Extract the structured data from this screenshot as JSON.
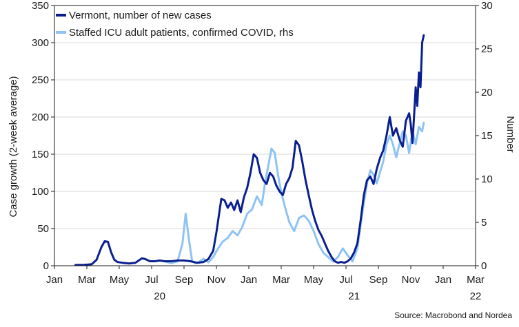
{
  "chart_data": {
    "type": "line",
    "title": "",
    "ylabel_left": "Case growth (2-week average)",
    "ylabel_right": "Number",
    "ylim_left": [
      0,
      350
    ],
    "ylim_right": [
      0,
      30
    ],
    "yticks_left": [
      "0",
      "50",
      "100",
      "150",
      "200",
      "250",
      "300",
      "350"
    ],
    "yticks_right": [
      "0",
      "5",
      "10",
      "15",
      "20",
      "25",
      "30"
    ],
    "xlim": [
      0,
      26
    ],
    "xticks": [
      {
        "x": 0,
        "label": "Jan"
      },
      {
        "x": 2,
        "label": "Mar"
      },
      {
        "x": 4,
        "label": "May"
      },
      {
        "x": 6,
        "label": "Jul"
      },
      {
        "x": 8,
        "label": "Sep"
      },
      {
        "x": 10,
        "label": "Nov"
      },
      {
        "x": 12,
        "label": "Jan"
      },
      {
        "x": 14,
        "label": "Mar"
      },
      {
        "x": 16,
        "label": "May"
      },
      {
        "x": 18,
        "label": "Jul"
      },
      {
        "x": 20,
        "label": "Sep"
      },
      {
        "x": 22,
        "label": "Nov"
      },
      {
        "x": 24,
        "label": "Jan"
      },
      {
        "x": 26,
        "label": "Mar"
      }
    ],
    "year_labels": [
      {
        "x": 6.5,
        "label": "20"
      },
      {
        "x": 18.5,
        "label": "21"
      },
      {
        "x": 26,
        "label": "22"
      }
    ],
    "grid": true,
    "legend_position": "top-left",
    "series": [
      {
        "name": "Vermont, number of new cases",
        "axis": "left",
        "color": "#0a1f8f",
        "x": [
          1.3,
          1.8,
          2.3,
          2.6,
          2.9,
          3.1,
          3.3,
          3.5,
          3.7,
          3.9,
          4.2,
          4.6,
          5.0,
          5.4,
          5.6,
          5.9,
          6.2,
          6.5,
          6.8,
          7.2,
          7.6,
          8.0,
          8.4,
          8.8,
          9.2,
          9.5,
          9.8,
          10.0,
          10.3,
          10.5,
          10.7,
          10.9,
          11.1,
          11.3,
          11.5,
          11.7,
          11.9,
          12.1,
          12.3,
          12.5,
          12.7,
          12.9,
          13.1,
          13.3,
          13.5,
          13.7,
          13.9,
          14.1,
          14.3,
          14.5,
          14.7,
          14.9,
          15.1,
          15.3,
          15.5,
          15.7,
          15.9,
          16.1,
          16.3,
          16.5,
          16.7,
          16.9,
          17.1,
          17.3,
          17.5,
          17.7,
          17.9,
          18.1,
          18.3,
          18.5,
          18.7,
          18.9,
          19.1,
          19.3,
          19.5,
          19.7,
          19.9,
          20.1,
          20.3,
          20.5,
          20.7,
          20.9,
          21.1,
          21.3,
          21.5,
          21.7,
          21.9,
          22.0,
          22.1,
          22.2,
          22.3,
          22.4,
          22.5,
          22.6,
          22.7,
          22.8
        ],
        "values": [
          1,
          1,
          2,
          8,
          25,
          33,
          32,
          18,
          8,
          5,
          4,
          3,
          4,
          10,
          9,
          6,
          6,
          7,
          6,
          6,
          7,
          7,
          6,
          4,
          5,
          9,
          20,
          45,
          90,
          88,
          78,
          85,
          75,
          88,
          72,
          92,
          105,
          125,
          150,
          145,
          125,
          115,
          110,
          125,
          120,
          108,
          100,
          95,
          110,
          118,
          132,
          168,
          162,
          140,
          115,
          95,
          75,
          60,
          48,
          40,
          30,
          20,
          12,
          6,
          4,
          5,
          4,
          6,
          10,
          18,
          30,
          60,
          95,
          115,
          120,
          110,
          130,
          145,
          155,
          175,
          200,
          175,
          185,
          170,
          160,
          195,
          205,
          190,
          165,
          200,
          240,
          215,
          260,
          240,
          300,
          310
        ]
      },
      {
        "name": "Staffed ICU adult patients, confirmed COVID, rhs",
        "axis": "right",
        "color": "#8ec3f3",
        "x": [
          6.8,
          7.2,
          7.6,
          7.9,
          8.1,
          8.3,
          8.5,
          8.7,
          8.9,
          9.2,
          9.5,
          9.8,
          10.1,
          10.4,
          10.7,
          11.0,
          11.3,
          11.6,
          11.9,
          12.2,
          12.5,
          12.8,
          13.0,
          13.2,
          13.4,
          13.6,
          13.8,
          14.0,
          14.2,
          14.5,
          14.8,
          15.1,
          15.4,
          15.7,
          16.0,
          16.3,
          16.6,
          16.9,
          17.2,
          17.5,
          17.8,
          18.1,
          18.4,
          18.7,
          19.0,
          19.3,
          19.5,
          19.7,
          19.9,
          20.1,
          20.3,
          20.5,
          20.7,
          20.9,
          21.1,
          21.3,
          21.5,
          21.7,
          21.9,
          22.1,
          22.3,
          22.5,
          22.7,
          22.8
        ],
        "values": [
          0.5,
          0.3,
          0.5,
          2.5,
          6,
          3,
          0.5,
          0.3,
          0.4,
          0.8,
          0.4,
          1.0,
          2.0,
          2.8,
          3.2,
          4.0,
          3.5,
          4.5,
          6.0,
          6.5,
          8.0,
          7.0,
          9.5,
          11.5,
          13.5,
          13.0,
          10.5,
          8.5,
          7.0,
          5.0,
          4.0,
          5.5,
          5.8,
          5.2,
          4.0,
          2.5,
          1.5,
          1.0,
          0.5,
          1.0,
          2.0,
          1.2,
          0.5,
          2.0,
          6.0,
          9.5,
          11.0,
          10.5,
          9.5,
          10.8,
          12.0,
          14.0,
          15.0,
          14.0,
          12.5,
          14.0,
          15.5,
          15.0,
          13.0,
          15.5,
          14.0,
          16.0,
          15.5,
          16.5
        ]
      }
    ]
  },
  "source": "Source: Macrobond and Nordea"
}
